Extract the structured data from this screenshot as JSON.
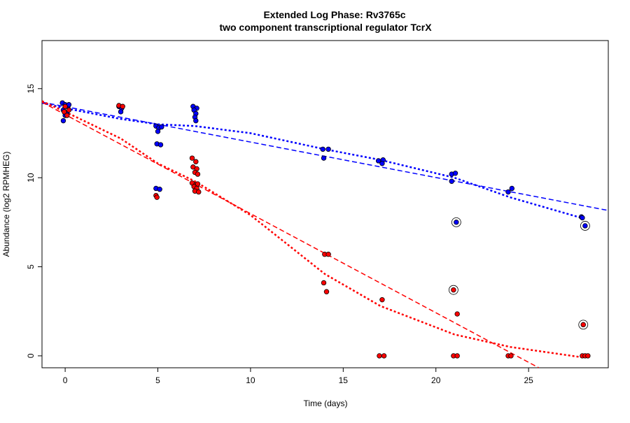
{
  "chart_data": {
    "type": "scatter",
    "title_line1": "Extended Log Phase:      Rv3765c",
    "title_line2": "two component transcriptional regulator TcrX",
    "xlabel": "Time  (days)",
    "ylabel": "Abundance  (log2 RPMHEG)",
    "xlim": [
      -1.25,
      29.3
    ],
    "ylim": [
      -0.67,
      17.7
    ],
    "xticks": [
      0,
      5,
      10,
      15,
      20,
      25
    ],
    "yticks": [
      0,
      5,
      10,
      15
    ],
    "grid": false,
    "colors": {
      "blue": "#0000ff",
      "red": "#ff0000"
    },
    "series": [
      {
        "color": "#0000ff",
        "points": [
          [
            -0.15,
            14.2
          ],
          [
            0.0,
            14.1
          ],
          [
            0.15,
            14.0
          ],
          [
            -0.1,
            13.8
          ],
          [
            0.1,
            13.6
          ],
          [
            0.0,
            13.5
          ],
          [
            -0.1,
            13.2
          ],
          [
            0.2,
            14.1
          ],
          [
            2.9,
            14.0
          ],
          [
            3.05,
            13.9
          ],
          [
            3.0,
            13.7
          ],
          [
            4.9,
            12.9
          ],
          [
            5.05,
            12.8
          ],
          [
            5.0,
            12.6
          ],
          [
            5.2,
            12.85
          ],
          [
            4.95,
            11.9
          ],
          [
            5.15,
            11.85
          ],
          [
            4.9,
            9.4
          ],
          [
            5.1,
            9.35
          ],
          [
            6.9,
            14.0
          ],
          [
            7.1,
            13.9
          ],
          [
            6.95,
            13.8
          ],
          [
            7.05,
            13.6
          ],
          [
            7.0,
            13.4
          ],
          [
            7.05,
            13.2
          ],
          [
            13.9,
            11.6
          ],
          [
            14.2,
            11.6
          ],
          [
            13.95,
            11.1
          ],
          [
            16.9,
            10.95
          ],
          [
            17.15,
            11.0
          ],
          [
            17.1,
            10.8
          ],
          [
            20.85,
            10.2
          ],
          [
            21.05,
            10.25
          ],
          [
            20.85,
            9.8
          ],
          [
            23.9,
            9.2
          ],
          [
            24.1,
            9.4
          ],
          [
            27.85,
            7.8
          ],
          [
            27.9,
            7.75
          ]
        ],
        "circled": [
          [
            21.1,
            7.5
          ],
          [
            28.05,
            7.3
          ]
        ],
        "straight_fit": [
          [
            -1.25,
            14.24
          ],
          [
            29.3,
            8.16
          ]
        ],
        "loess_fit": [
          [
            -1.25,
            14.2
          ],
          [
            0,
            13.9
          ],
          [
            3,
            13.3
          ],
          [
            5,
            13.0
          ],
          [
            7,
            12.9
          ],
          [
            10,
            12.5
          ],
          [
            14,
            11.6
          ],
          [
            17,
            11.0
          ],
          [
            21,
            10.0
          ],
          [
            24,
            8.9
          ],
          [
            28,
            7.7
          ]
        ]
      },
      {
        "color": "#ff0000",
        "points": [
          [
            0.0,
            14.0
          ],
          [
            -0.05,
            13.7
          ],
          [
            0.1,
            13.5
          ],
          [
            0.2,
            13.8
          ],
          [
            2.9,
            14.05
          ],
          [
            3.1,
            14.0
          ],
          [
            4.9,
            9.0
          ],
          [
            4.95,
            8.9
          ],
          [
            6.85,
            11.1
          ],
          [
            7.05,
            10.9
          ],
          [
            6.9,
            10.6
          ],
          [
            7.1,
            10.5
          ],
          [
            7.0,
            10.3
          ],
          [
            7.15,
            10.2
          ],
          [
            6.85,
            9.7
          ],
          [
            7.05,
            9.6
          ],
          [
            7.15,
            9.65
          ],
          [
            6.95,
            9.5
          ],
          [
            7.1,
            9.4
          ],
          [
            7.0,
            9.25
          ],
          [
            7.2,
            9.2
          ],
          [
            14.0,
            5.7
          ],
          [
            14.2,
            5.7
          ],
          [
            13.95,
            4.1
          ],
          [
            14.1,
            3.6
          ],
          [
            17.1,
            3.15
          ],
          [
            16.95,
            0.0
          ],
          [
            17.2,
            0.0
          ],
          [
            21.15,
            2.35
          ],
          [
            20.95,
            0.0
          ],
          [
            21.15,
            0.0
          ],
          [
            23.9,
            0.0
          ],
          [
            24.05,
            0.0
          ],
          [
            27.9,
            0.0
          ],
          [
            28.05,
            0.0
          ],
          [
            28.2,
            0.0
          ]
        ],
        "circled": [
          [
            20.95,
            3.7
          ],
          [
            27.95,
            1.75
          ]
        ],
        "straight_fit": [
          [
            -1.25,
            14.24
          ],
          [
            25.55,
            -0.67
          ]
        ],
        "loess_fit": [
          [
            -1.25,
            14.3
          ],
          [
            0,
            13.7
          ],
          [
            3,
            12.2
          ],
          [
            5,
            10.8
          ],
          [
            7,
            9.8
          ],
          [
            10,
            7.9
          ],
          [
            14,
            4.6
          ],
          [
            17,
            2.8
          ],
          [
            21,
            1.2
          ],
          [
            24,
            0.5
          ],
          [
            28,
            -0.1
          ]
        ]
      }
    ]
  }
}
